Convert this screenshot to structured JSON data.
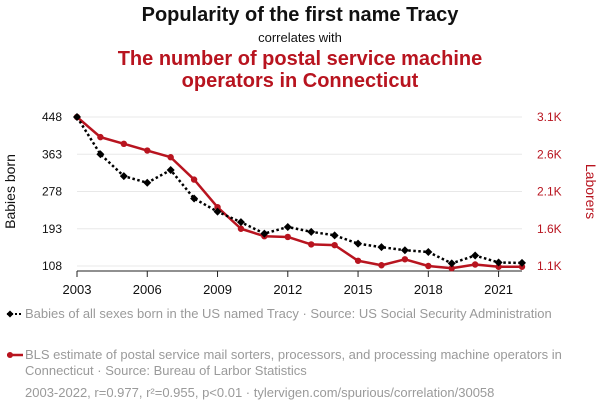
{
  "title": "Popularity of the first name Tracy",
  "subtitle": "correlates with",
  "title2_lines": [
    "The number of postal service machine",
    "operators in Connecticut"
  ],
  "colors": {
    "series1": "#000000",
    "series2": "#b8141f",
    "title2": "#b8141f",
    "grid": "#e8e8e8",
    "muted": "#9a9a9a"
  },
  "chart_data": {
    "type": "line",
    "x": [
      2003,
      2004,
      2005,
      2006,
      2007,
      2008,
      2009,
      2010,
      2011,
      2012,
      2013,
      2014,
      2015,
      2016,
      2017,
      2018,
      2019,
      2020,
      2021,
      2022
    ],
    "xticks": [
      2003,
      2006,
      2009,
      2012,
      2015,
      2018,
      2021
    ],
    "xlim": [
      2003,
      2022
    ],
    "series": [
      {
        "name": "Babies of all sexes born in the US named Tracy",
        "axis": "left",
        "style": "dotted",
        "marker": "diamond",
        "values": [
          448,
          363,
          313,
          298,
          327,
          262,
          232,
          208,
          182,
          197,
          186,
          178,
          159,
          151,
          144,
          140,
          114,
          132,
          116,
          115
        ]
      },
      {
        "name": "BLS estimate of postal service mail sorters, processors, and processing machine operators in Connecticut",
        "axis": "right",
        "style": "solid",
        "marker": "circle",
        "values": [
          3100,
          2830,
          2740,
          2650,
          2560,
          2260,
          1890,
          1600,
          1500,
          1490,
          1390,
          1380,
          1170,
          1110,
          1190,
          1100,
          1070,
          1120,
          1090,
          1090
        ]
      }
    ],
    "ylabel_left": "Babies born",
    "ylabel_right": "Laborers",
    "yticks_left": [
      {
        "v": 108,
        "label": "108"
      },
      {
        "v": 193,
        "label": "193"
      },
      {
        "v": 278,
        "label": "278"
      },
      {
        "v": 363,
        "label": "363"
      },
      {
        "v": 448,
        "label": "448"
      }
    ],
    "yticks_right": [
      {
        "v": 1100,
        "label": "1.1K"
      },
      {
        "v": 1600,
        "label": "1.6K"
      },
      {
        "v": 2100,
        "label": "2.1K"
      },
      {
        "v": 2600,
        "label": "2.6K"
      },
      {
        "v": 3100,
        "label": "3.1K"
      }
    ],
    "ylim_left": [
      108,
      448
    ],
    "ylim_right": [
      1100,
      3100
    ],
    "grid": true
  },
  "legend": [
    {
      "text": "Babies of all sexes born in the US named Tracy · Source: US Social Security Administration"
    },
    {
      "text": "BLS estimate of postal service mail sorters, processors, and processing machine operators in Connecticut · Source: Bureau of Larbor Statistics"
    }
  ],
  "footer": "2003-2022, r=0.977, r²=0.955, p<0.01 · tylervigen.com/spurious/correlation/30058"
}
